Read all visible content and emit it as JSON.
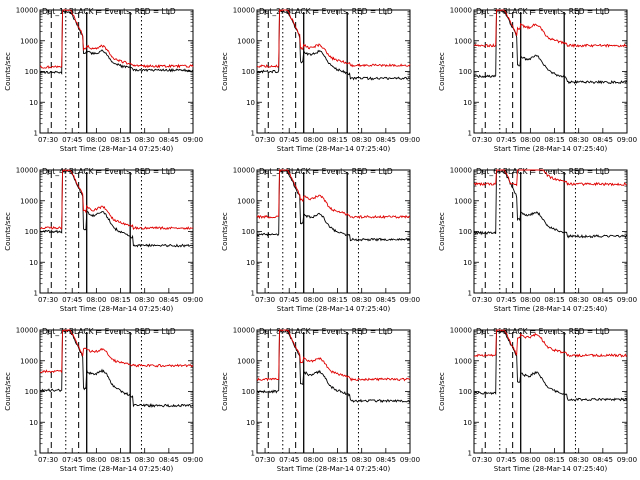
{
  "chart_data": [
    {
      "title": "Det_1f BLACK = Events, RED = LLD",
      "xlabel": "Start Time (28-Mar-14 07:25:40)",
      "ylabel": "Counts/sec",
      "type": "line",
      "ylog": true,
      "ylim": [
        1,
        10000
      ],
      "xticks": [
        "07:30",
        "07:45",
        "08:00",
        "08:15",
        "08:30",
        "08:45",
        "09:00"
      ],
      "yticks": [
        "1",
        "10",
        "100",
        "1000",
        "10000"
      ],
      "series": [
        {
          "name": "Events",
          "color": "#000000",
          "base": 95,
          "peak": 9000,
          "tail": 110
        },
        {
          "name": "LLD",
          "color": "#e00000",
          "base": 140,
          "peak": 10000,
          "tail": 150
        }
      ]
    },
    {
      "title": "Det_2f BLACK = Events, RED = LLD",
      "xlabel": "Start Time (28-Mar-14 07:25:40)",
      "ylabel": "Counts/sec",
      "type": "line",
      "ylog": true,
      "ylim": [
        1,
        10000
      ],
      "xticks": [
        "07:30",
        "07:45",
        "08:00",
        "08:15",
        "08:30",
        "08:45",
        "09:00"
      ],
      "yticks": [
        "1",
        "10",
        "100",
        "1000",
        "10000"
      ],
      "series": [
        {
          "name": "Events",
          "color": "#000000",
          "base": 100,
          "peak": 9000,
          "tail": 60
        },
        {
          "name": "LLD",
          "color": "#e00000",
          "base": 150,
          "peak": 10000,
          "tail": 160
        }
      ]
    },
    {
      "title": "Det_3f BLACK = Events, RED = LLD",
      "xlabel": "Start Time (28-Mar-14 07:25:40)",
      "ylabel": "Counts/sec",
      "type": "line",
      "ylog": true,
      "ylim": [
        1,
        10000
      ],
      "xticks": [
        "07:30",
        "07:45",
        "08:00",
        "08:15",
        "08:30",
        "08:45",
        "09:00"
      ],
      "yticks": [
        "1",
        "10",
        "100",
        "1000",
        "10000"
      ],
      "series": [
        {
          "name": "Events",
          "color": "#000000",
          "base": 70,
          "peak": 9000,
          "tail": 45
        },
        {
          "name": "LLD",
          "color": "#e00000",
          "base": 700,
          "peak": 10000,
          "tail": 700
        }
      ]
    },
    {
      "title": "Det_4f BLACK = Events, RED = LLD",
      "xlabel": "Start Time (28-Mar-14 07:25:40)",
      "ylabel": "Counts/sec",
      "type": "line",
      "ylog": true,
      "ylim": [
        1,
        10000
      ],
      "xticks": [
        "07:30",
        "07:45",
        "08:00",
        "08:15",
        "08:30",
        "08:45",
        "09:00"
      ],
      "yticks": [
        "1",
        "10",
        "100",
        "1000",
        "10000"
      ],
      "series": [
        {
          "name": "Events",
          "color": "#000000",
          "base": 100,
          "peak": 9000,
          "tail": 35
        },
        {
          "name": "LLD",
          "color": "#e00000",
          "base": 130,
          "peak": 10000,
          "tail": 130
        }
      ]
    },
    {
      "title": "Det_5f BLACK = Events, RED = LLD",
      "xlabel": "Start Time (28-Mar-14 07:25:40)",
      "ylabel": "Counts/sec",
      "type": "line",
      "ylog": true,
      "ylim": [
        1,
        10000
      ],
      "xticks": [
        "07:30",
        "07:45",
        "08:00",
        "08:15",
        "08:30",
        "08:45",
        "09:00"
      ],
      "yticks": [
        "1",
        "10",
        "100",
        "1000",
        "10000"
      ],
      "series": [
        {
          "name": "Events",
          "color": "#000000",
          "base": 80,
          "peak": 9000,
          "tail": 55
        },
        {
          "name": "LLD",
          "color": "#e00000",
          "base": 300,
          "peak": 10000,
          "tail": 300
        }
      ]
    },
    {
      "title": "Det_6f BLACK = Events, RED = LLD",
      "xlabel": "Start Time (28-Mar-14 07:25:40)",
      "ylabel": "Counts/sec",
      "type": "line",
      "ylog": true,
      "ylim": [
        1,
        10000
      ],
      "xticks": [
        "07:30",
        "07:45",
        "08:00",
        "08:15",
        "08:30",
        "08:45",
        "09:00"
      ],
      "yticks": [
        "1",
        "10",
        "100",
        "1000",
        "10000"
      ],
      "series": [
        {
          "name": "Events",
          "color": "#000000",
          "base": 90,
          "peak": 9000,
          "tail": 70
        },
        {
          "name": "LLD",
          "color": "#e00000",
          "base": 3500,
          "peak": 10000,
          "tail": 3500
        }
      ]
    },
    {
      "title": "Det_7f BLACK = Events, RED = LLD",
      "xlabel": "Start Time (28-Mar-14 07:25:40)",
      "ylabel": "Counts/sec",
      "type": "line",
      "ylog": true,
      "ylim": [
        1,
        10000
      ],
      "xticks": [
        "07:30",
        "07:45",
        "08:00",
        "08:15",
        "08:30",
        "08:45",
        "09:00"
      ],
      "yticks": [
        "1",
        "10",
        "100",
        "1000",
        "10000"
      ],
      "series": [
        {
          "name": "Events",
          "color": "#000000",
          "base": 110,
          "peak": 9000,
          "tail": 35
        },
        {
          "name": "LLD",
          "color": "#e00000",
          "base": 450,
          "peak": 10000,
          "tail": 700
        }
      ]
    },
    {
      "title": "Det_8f BLACK = Events, RED = LLD",
      "xlabel": "Start Time (28-Mar-14 07:25:40)",
      "ylabel": "Counts/sec",
      "type": "line",
      "ylog": true,
      "ylim": [
        1,
        10000
      ],
      "xticks": [
        "07:30",
        "07:45",
        "08:00",
        "08:15",
        "08:30",
        "08:45",
        "09:00"
      ],
      "yticks": [
        "1",
        "10",
        "100",
        "1000",
        "10000"
      ],
      "series": [
        {
          "name": "Events",
          "color": "#000000",
          "base": 100,
          "peak": 9000,
          "tail": 50
        },
        {
          "name": "LLD",
          "color": "#e00000",
          "base": 250,
          "peak": 10000,
          "tail": 250
        }
      ]
    },
    {
      "title": "Det_9f BLACK = Events, RED = LLD",
      "xlabel": "Start Time (28-Mar-14 07:25:40)",
      "ylabel": "Counts/sec",
      "type": "line",
      "ylog": true,
      "ylim": [
        1,
        10000
      ],
      "xticks": [
        "07:30",
        "07:45",
        "08:00",
        "08:15",
        "08:30",
        "08:45",
        "09:00"
      ],
      "yticks": [
        "1",
        "10",
        "100",
        "1000",
        "10000"
      ],
      "series": [
        {
          "name": "Events",
          "color": "#000000",
          "base": 90,
          "peak": 9000,
          "tail": 55
        },
        {
          "name": "LLD",
          "color": "#e00000",
          "base": 1500,
          "peak": 10000,
          "tail": 1500
        }
      ]
    }
  ]
}
